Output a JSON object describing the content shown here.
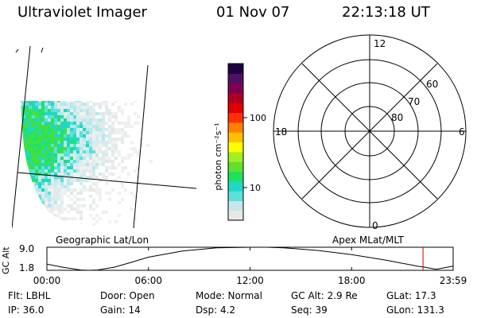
{
  "header": {
    "instrument": "Ultraviolet Imager",
    "date": "01 Nov 07",
    "time": "22:13:18 UT"
  },
  "colorbar": {
    "unit_label": "photon cm⁻²s⁻¹",
    "ticks": [
      {
        "label": "100",
        "value": 100
      },
      {
        "label": "10",
        "value": 10
      }
    ]
  },
  "geo_panel": {
    "label": "Geographic Lat/Lon"
  },
  "polar_panel": {
    "label": "Apex MLat/MLT",
    "mlt_labels": {
      "top": "12",
      "left": "18",
      "right": "6",
      "bottom": "0"
    },
    "lat_rings": [
      "60",
      "70",
      "80"
    ]
  },
  "chart_data": {
    "type": "line",
    "ylabel": "GC Alt",
    "yticks": [
      "9.0",
      "1.8"
    ],
    "ylim": [
      1.8,
      9.0
    ],
    "xlim_hours": [
      0,
      24
    ],
    "xtick_labels": [
      "00:00",
      "06:00",
      "12:00",
      "18:00",
      "23:59"
    ],
    "series": [
      {
        "name": "",
        "x_hours": [
          0,
          1,
          2,
          2.5,
          3,
          4,
          5,
          6,
          8,
          10,
          12,
          13,
          14,
          16,
          18,
          20,
          22,
          22.21,
          23,
          23.99
        ],
        "values": [
          3.7,
          2.7,
          1.9,
          1.8,
          1.9,
          2.8,
          4.3,
          5.9,
          7.8,
          8.8,
          9.0,
          9.0,
          8.8,
          8.0,
          6.7,
          5.0,
          3.0,
          2.9,
          2.1,
          3.1
        ]
      }
    ],
    "marker_hours": 22.22
  },
  "info": {
    "row1": {
      "flt": "Flt: LBHL",
      "door": "Door: Open",
      "mode": "Mode: Normal",
      "gcalt": "GC Alt: 2.9 Re",
      "glat": "GLat:  17.3"
    },
    "row2": {
      "ip": "IP: 36.0",
      "gain": "Gain: 14",
      "dsp": "Dsp:    4.2",
      "seq": "Seq: 39",
      "glon": "GLon: 131.3"
    }
  },
  "colors": {
    "marker": "#cc0000",
    "scale": [
      "#e8e8e8",
      "#c8e6ea",
      "#5ce0d8",
      "#20d8c8",
      "#20e060",
      "#60e030",
      "#a0f020",
      "#ffff00",
      "#ffc000",
      "#ff8000",
      "#ff3000",
      "#e00000",
      "#b00020",
      "#800050",
      "#501060",
      "#200040"
    ]
  }
}
